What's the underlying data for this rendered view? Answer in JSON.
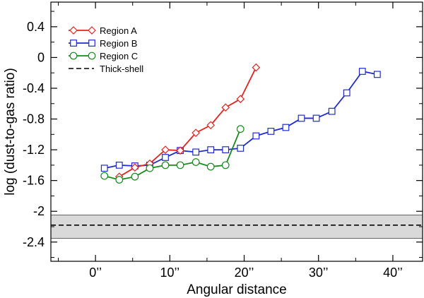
{
  "chart_data": {
    "type": "line",
    "title": "",
    "xlabel": "Angular distance",
    "ylabel": "log (dust-to-gas ratio)",
    "xlim": [
      -6,
      44
    ],
    "ylim": [
      -2.65,
      0.72
    ],
    "x_ticks": [
      0,
      10,
      20,
      30,
      40
    ],
    "x_tick_labels": [
      "0’’",
      "10’’",
      "20’’",
      "30’’",
      "40’’"
    ],
    "y_ticks": [
      0.4,
      0,
      -0.4,
      -0.8,
      -1.2,
      -1.6,
      -2,
      -2.4
    ],
    "y_tick_labels": [
      "0.4",
      "0",
      "-0.4",
      "-0.8",
      "-1.2",
      "-1.6",
      "-2",
      "-2.4"
    ],
    "grid": false,
    "legend_position": "top-left",
    "series": [
      {
        "name": "Region A",
        "color": "#e8231f",
        "marker": "diamond",
        "x": [
          3.2,
          5.3,
          7.3,
          9.4,
          11.4,
          13.5,
          15.5,
          17.5,
          19.5,
          21.6
        ],
        "y": [
          -1.55,
          -1.43,
          -1.38,
          -1.2,
          -1.21,
          -0.98,
          -0.88,
          -0.65,
          -0.54,
          -0.13
        ]
      },
      {
        "name": "Region B",
        "color": "#1f2bd0",
        "marker": "square",
        "x": [
          1.2,
          3.2,
          5.3,
          7.3,
          9.4,
          11.4,
          13.5,
          15.5,
          17.5,
          19.5,
          21.6,
          23.6,
          25.6,
          27.7,
          29.7,
          31.8,
          33.8,
          35.9,
          37.9
        ],
        "y": [
          -1.44,
          -1.4,
          -1.41,
          -1.4,
          -1.3,
          -1.21,
          -1.23,
          -1.2,
          -1.2,
          -1.18,
          -1.02,
          -0.96,
          -0.91,
          -0.79,
          -0.79,
          -0.7,
          -0.46,
          -0.18,
          -0.22
        ]
      },
      {
        "name": "Region C",
        "color": "#168a1a",
        "marker": "circle",
        "x": [
          1.2,
          3.2,
          5.3,
          7.3,
          9.4,
          11.4,
          13.5,
          15.5,
          17.5,
          19.5
        ],
        "y": [
          -1.54,
          -1.59,
          -1.55,
          -1.44,
          -1.4,
          -1.4,
          -1.36,
          -1.42,
          -1.4,
          -0.93
        ]
      }
    ],
    "reference_line": {
      "name": "Thick-shell",
      "y": -2.18,
      "style": "dashed",
      "band": [
        -2.35,
        -2.05
      ],
      "band_color": "#d9d9d9"
    }
  }
}
